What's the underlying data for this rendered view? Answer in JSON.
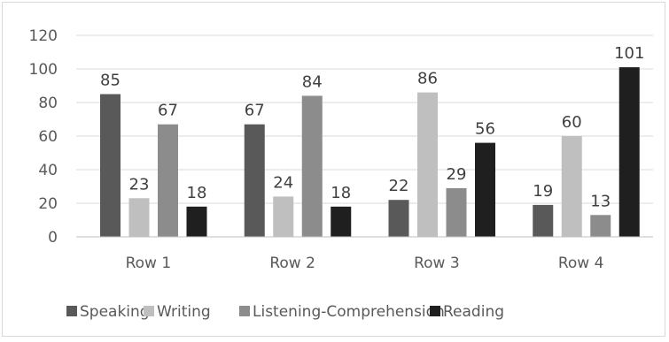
{
  "chart_data": {
    "type": "bar",
    "categories": [
      "Row 1",
      "Row 2",
      "Row 3",
      "Row 4"
    ],
    "series": [
      {
        "name": "Speaking",
        "values": [
          85,
          67,
          22,
          19
        ],
        "color": "#595959"
      },
      {
        "name": "Writing",
        "values": [
          23,
          24,
          86,
          60
        ],
        "color": "#bfbfbf"
      },
      {
        "name": "Listening-Comprehension",
        "values": [
          67,
          84,
          29,
          13
        ],
        "color": "#8c8c8c"
      },
      {
        "name": "Reading",
        "values": [
          18,
          18,
          56,
          101
        ],
        "color": "#1f1f1f"
      }
    ],
    "ylim": [
      0,
      120
    ],
    "yticks": [
      0,
      20,
      40,
      60,
      80,
      100,
      120
    ],
    "grid": true,
    "legend_position": "bottom",
    "data_labels": true
  }
}
